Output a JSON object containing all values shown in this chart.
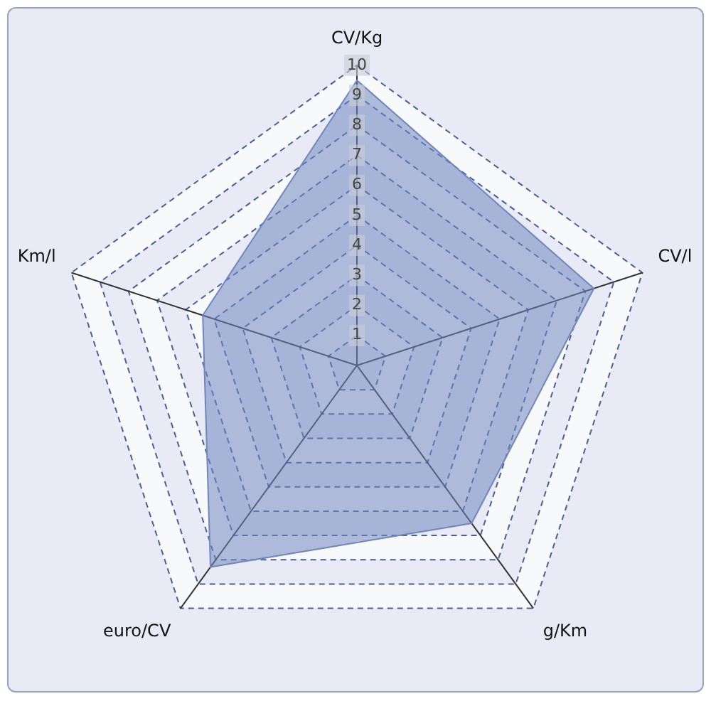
{
  "chart_data": {
    "type": "radar",
    "categories": [
      "CV/Kg",
      "CV/l",
      "g/Km",
      "euro/CV",
      "Km/l"
    ],
    "series": [
      {
        "color": "#6f86be",
        "values": [
          9.5,
          8.3,
          6.5,
          8.3,
          5.4
        ]
      }
    ],
    "ylim": [
      0,
      10
    ],
    "yticks": [
      1,
      2,
      3,
      4,
      5,
      6,
      7,
      8,
      9,
      10
    ],
    "grid": true,
    "legend": false
  }
}
